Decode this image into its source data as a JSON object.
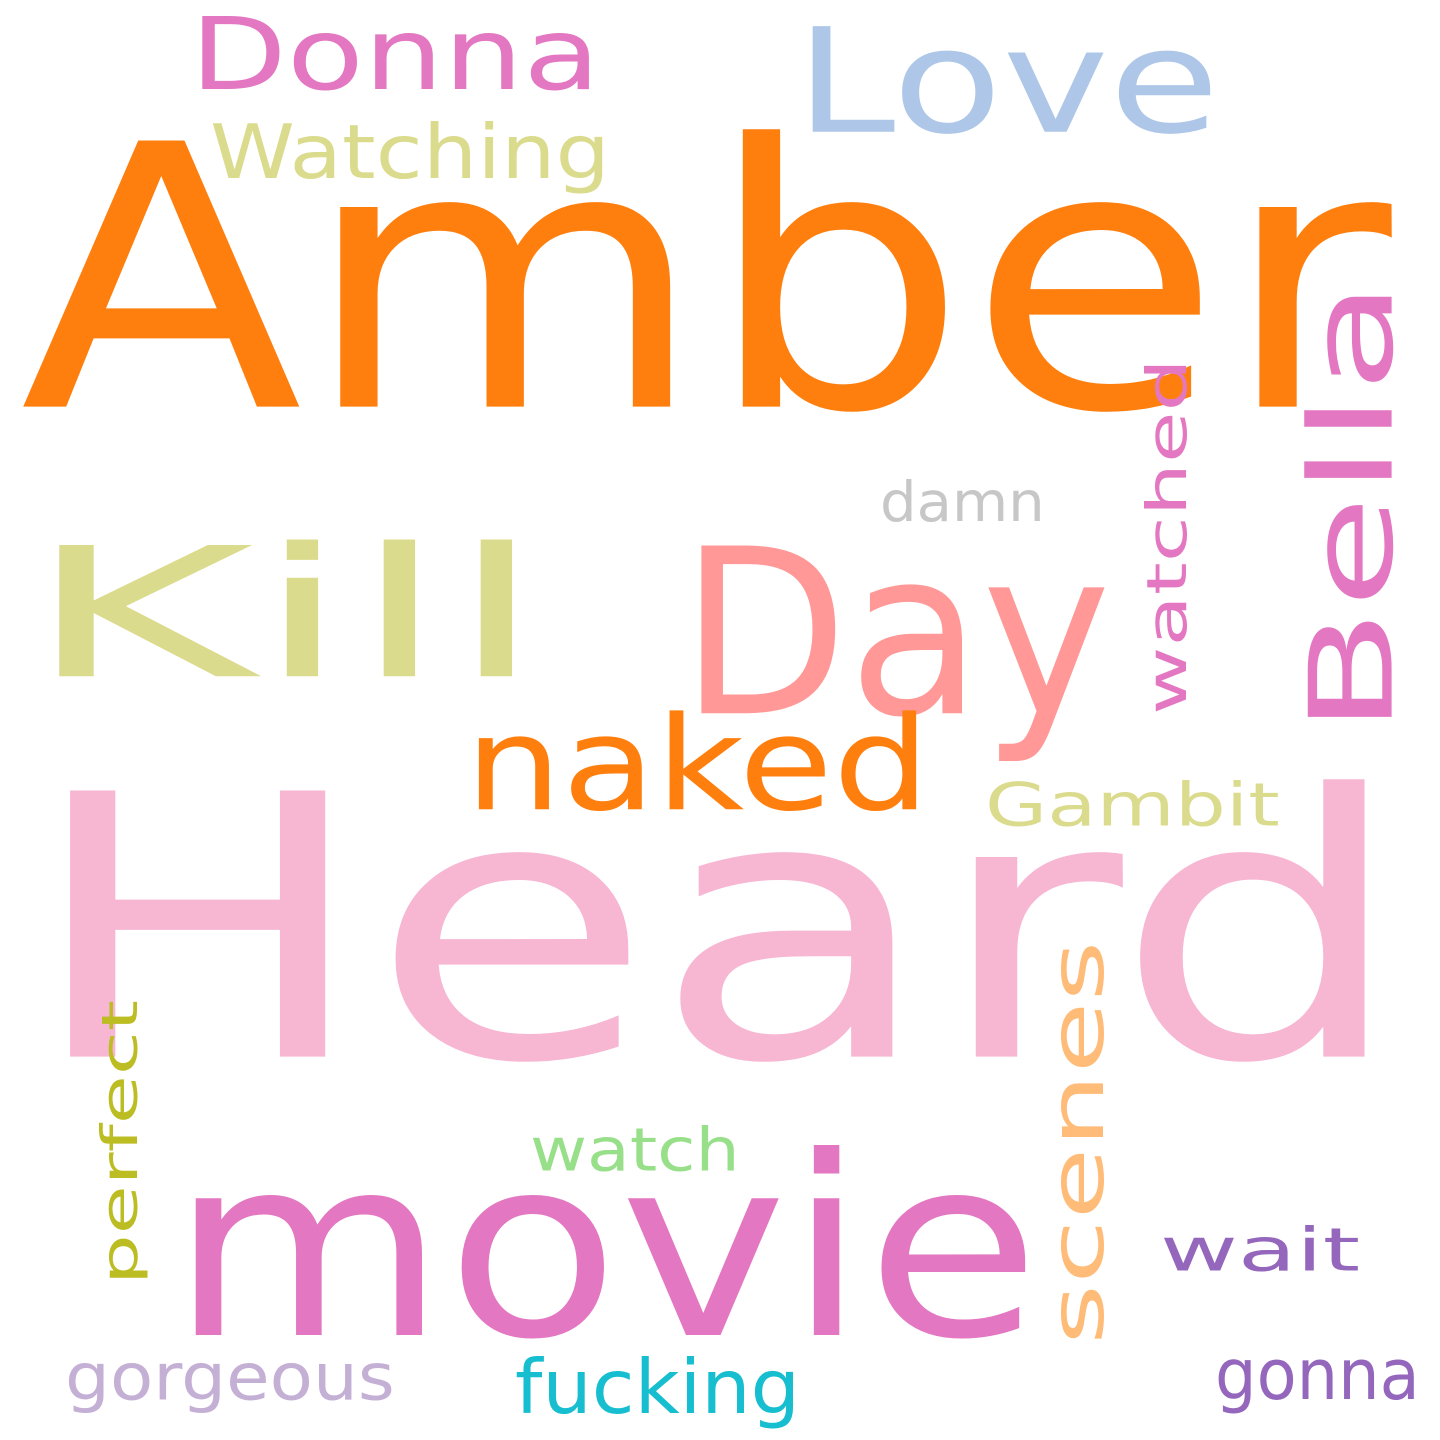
{
  "words": [
    {
      "text": "Amber",
      "color": "#ff7f0e"
    },
    {
      "text": "Heard",
      "color": "#f7b6d2"
    },
    {
      "text": "Kill",
      "color": "#dbdb8d"
    },
    {
      "text": "Day",
      "color": "#ff9896"
    },
    {
      "text": "movie",
      "color": "#e377c2"
    },
    {
      "text": "Love",
      "color": "#aec7e8"
    },
    {
      "text": "Donna",
      "color": "#e377c2"
    },
    {
      "text": "Bella",
      "color": "#e377c2"
    },
    {
      "text": "naked",
      "color": "#ff7f0e"
    },
    {
      "text": "scenes",
      "color": "#ffbb78"
    },
    {
      "text": "Watching",
      "color": "#dbdb8d"
    },
    {
      "text": "watched",
      "color": "#e377c2"
    },
    {
      "text": "Gambit",
      "color": "#dbdb8d"
    },
    {
      "text": "damn",
      "color": "#c7c7c7"
    },
    {
      "text": "perfect",
      "color": "#bcbd22"
    },
    {
      "text": "watch",
      "color": "#98df8a"
    },
    {
      "text": "wait",
      "color": "#9467bd"
    },
    {
      "text": "gorgeous",
      "color": "#c5b0d5"
    },
    {
      "text": "fucking",
      "color": "#17becf"
    },
    {
      "text": "gonna",
      "color": "#9467bd"
    }
  ]
}
